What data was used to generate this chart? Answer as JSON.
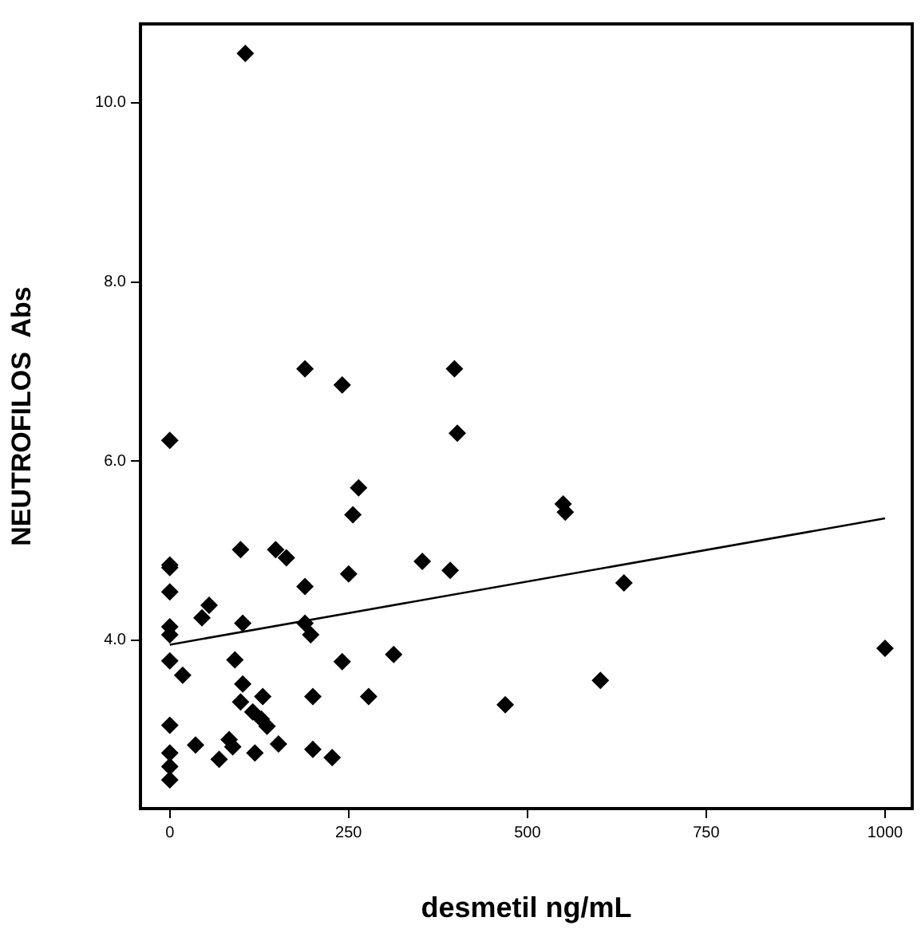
{
  "chart_data": {
    "type": "scatter",
    "xlabel": "desmetil ng/mL",
    "ylabel": "NEUTROFILOS  Abs",
    "xlim": [
      -41,
      1038
    ],
    "ylim": [
      2.12,
      10.88
    ],
    "xticks": [
      0,
      250,
      500,
      750,
      1000
    ],
    "yticks": [
      {
        "value": 4,
        "label": "4.0"
      },
      {
        "value": 6,
        "label": "6.0"
      },
      {
        "value": 8,
        "label": "8.0"
      },
      {
        "value": 10,
        "label": "10.0"
      }
    ],
    "marker": "diamond",
    "legend": false,
    "series": [
      {
        "color": "#000000",
        "x": [
          105.6,
          189,
          241,
          398,
          402,
          0,
          264,
          256,
          550,
          553,
          99,
          148,
          163,
          353,
          392,
          250,
          0,
          0,
          189,
          635,
          0,
          55,
          45,
          102,
          0,
          0,
          189,
          197,
          0,
          18,
          91,
          102,
          241,
          313,
          1000,
          602,
          99,
          130,
          200,
          278,
          116,
          128,
          136,
          469,
          0,
          0,
          0,
          0,
          36,
          83,
          88,
          69,
          119,
          152,
          200,
          227
        ],
        "values": [
          10.55,
          7.03,
          6.85,
          7.03,
          6.31,
          6.23,
          5.7,
          5.4,
          5.52,
          5.43,
          5.01,
          5.01,
          4.92,
          4.88,
          4.78,
          4.74,
          4.84,
          4.81,
          4.6,
          4.64,
          4.54,
          4.39,
          4.25,
          4.19,
          4.15,
          4.06,
          4.19,
          4.06,
          3.77,
          3.61,
          3.78,
          3.51,
          3.76,
          3.84,
          3.91,
          3.55,
          3.31,
          3.37,
          3.37,
          3.37,
          3.2,
          3.12,
          3.04,
          3.28,
          3.05,
          2.74,
          2.59,
          2.44,
          2.83,
          2.89,
          2.81,
          2.67,
          2.74,
          2.84,
          2.78,
          2.69
        ]
      },
      {
        "type": "line",
        "color": "#000000",
        "marker": "none",
        "x": [
          0,
          1000
        ],
        "values": [
          3.95,
          5.36
        ]
      }
    ]
  }
}
